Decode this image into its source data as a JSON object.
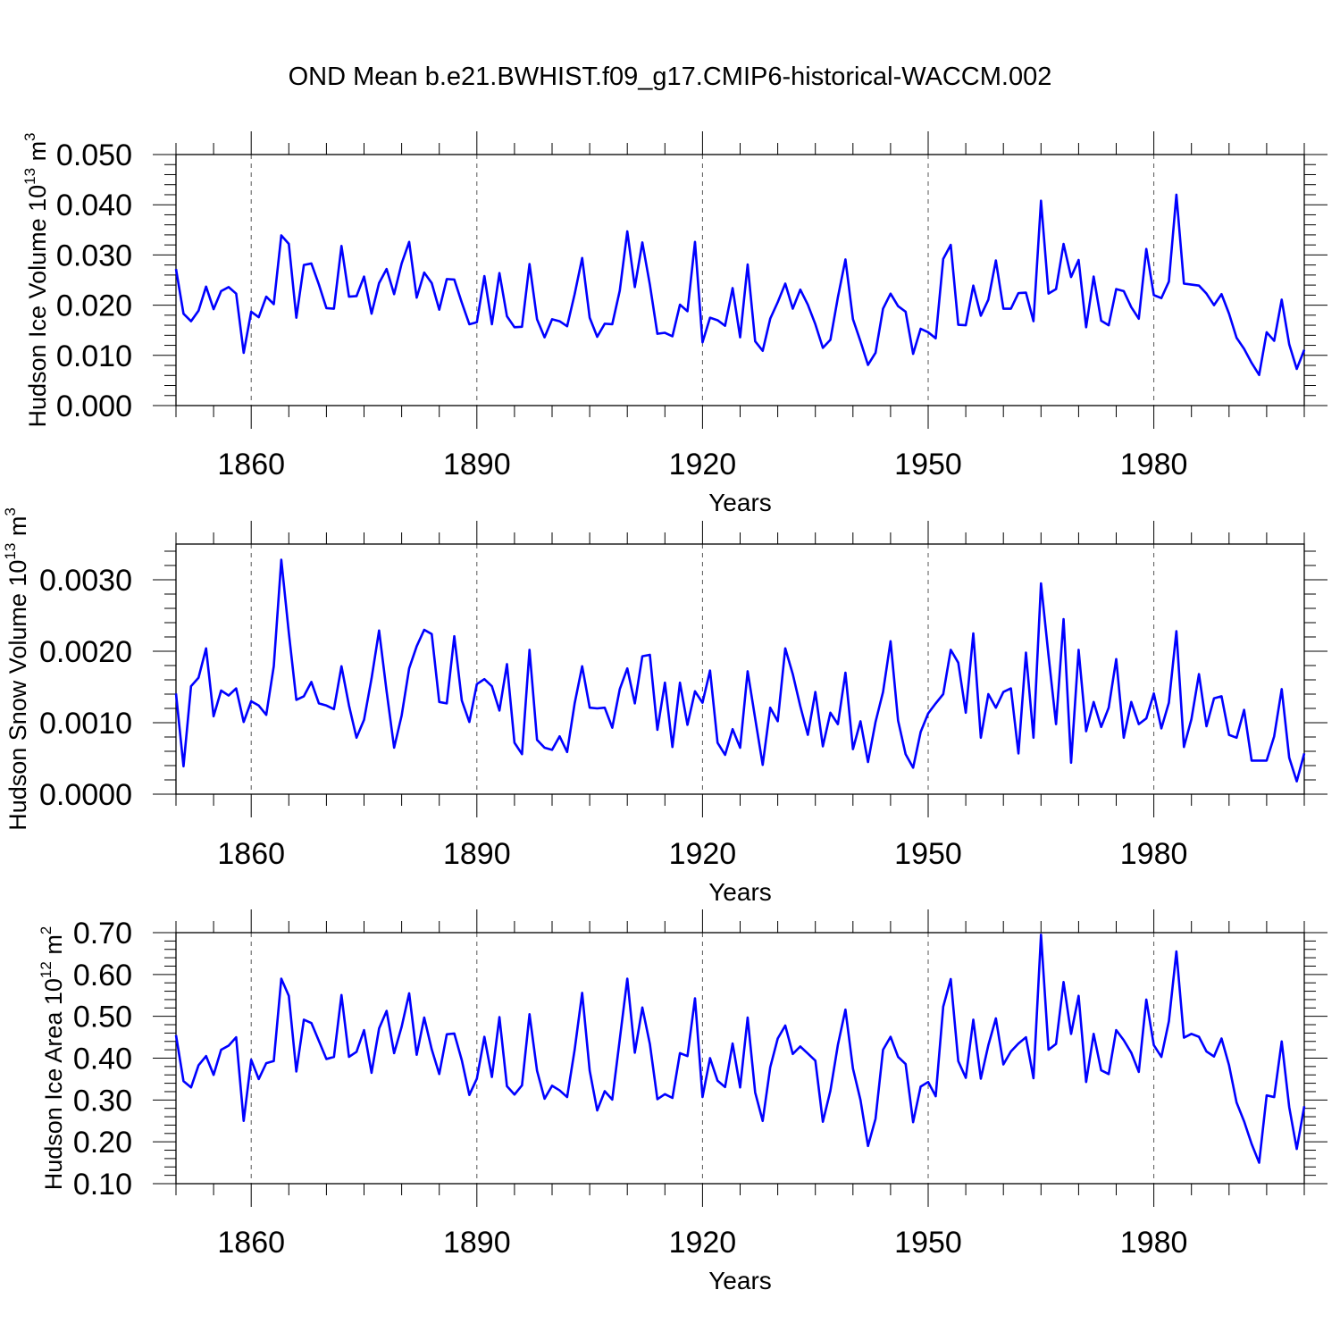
{
  "title": "OND Mean b.e21.BWHIST.f09_g17.CMIP6-historical-WACCM.002",
  "line_color": "#0000ff",
  "chart_data": [
    {
      "type": "line",
      "ylabel": {
        "text": "Hudson Ice Volume 10",
        "sup1": "13",
        "mid": " m",
        "sup2": "3"
      },
      "xlabel": "Years",
      "xlim": [
        1850,
        2000
      ],
      "ylim": [
        0.0,
        0.05
      ],
      "xticks": [
        1860,
        1890,
        1920,
        1950,
        1980
      ],
      "xtick_labels": [
        "1860",
        "1890",
        "1920",
        "1950",
        "1980"
      ],
      "yticks": [
        0.0,
        0.01,
        0.02,
        0.03,
        0.04,
        0.05
      ],
      "ytick_labels": [
        "0.000",
        "0.010",
        "0.020",
        "0.030",
        "0.040",
        "0.050"
      ],
      "x_start": 1850,
      "values": [
        0.0272,
        0.0183,
        0.0168,
        0.0189,
        0.0237,
        0.0192,
        0.0228,
        0.0236,
        0.0223,
        0.0105,
        0.0187,
        0.0176,
        0.0217,
        0.0202,
        0.0339,
        0.0322,
        0.0175,
        0.028,
        0.0283,
        0.0241,
        0.0194,
        0.0193,
        0.0318,
        0.0217,
        0.0218,
        0.0257,
        0.0183,
        0.0244,
        0.0272,
        0.0222,
        0.0283,
        0.0326,
        0.0215,
        0.0265,
        0.0244,
        0.0191,
        0.0252,
        0.0251,
        0.0205,
        0.0162,
        0.0166,
        0.0258,
        0.0162,
        0.0264,
        0.0178,
        0.0156,
        0.0157,
        0.0282,
        0.0172,
        0.0136,
        0.0172,
        0.0168,
        0.0158,
        0.0222,
        0.0294,
        0.0175,
        0.0137,
        0.0163,
        0.0162,
        0.0229,
        0.0347,
        0.0236,
        0.0325,
        0.0241,
        0.0143,
        0.0145,
        0.0138,
        0.0201,
        0.0188,
        0.0326,
        0.0126,
        0.0175,
        0.017,
        0.0159,
        0.0234,
        0.0136,
        0.0281,
        0.0128,
        0.0109,
        0.0173,
        0.0206,
        0.0243,
        0.0193,
        0.0231,
        0.0201,
        0.0162,
        0.0115,
        0.0131,
        0.0216,
        0.0291,
        0.0172,
        0.0128,
        0.0081,
        0.0105,
        0.0193,
        0.0223,
        0.0198,
        0.0187,
        0.0103,
        0.0153,
        0.0146,
        0.0134,
        0.0292,
        0.032,
        0.0161,
        0.016,
        0.0239,
        0.0179,
        0.0211,
        0.0289,
        0.0193,
        0.0193,
        0.0224,
        0.0225,
        0.0168,
        0.0408,
        0.0223,
        0.0232,
        0.0322,
        0.0256,
        0.029,
        0.0156,
        0.0257,
        0.0169,
        0.016,
        0.0232,
        0.0228,
        0.0196,
        0.0173,
        0.0312,
        0.022,
        0.0214,
        0.0247,
        0.042,
        0.0243,
        0.0241,
        0.0239,
        0.0223,
        0.02,
        0.0222,
        0.0183,
        0.0135,
        0.0113,
        0.0085,
        0.0061,
        0.0146,
        0.0129,
        0.0211,
        0.0122,
        0.0073,
        0.0111
      ]
    },
    {
      "type": "line",
      "ylabel": {
        "text": "Hudson Snow Volume 10",
        "sup1": "13",
        "mid": " m",
        "sup2": "3"
      },
      "xlabel": "Years",
      "xlim": [
        1850,
        2000
      ],
      "ylim": [
        0.0,
        0.0035
      ],
      "xticks": [
        1860,
        1890,
        1920,
        1950,
        1980
      ],
      "xtick_labels": [
        "1860",
        "1890",
        "1920",
        "1950",
        "1980"
      ],
      "yticks": [
        0.0,
        0.001,
        0.002,
        0.003
      ],
      "ytick_labels": [
        "0.0000",
        "0.0010",
        "0.0020",
        "0.0030"
      ],
      "x_start": 1850,
      "values": [
        0.00141,
        0.00039,
        0.00151,
        0.00163,
        0.00204,
        0.00109,
        0.00145,
        0.00138,
        0.00148,
        0.00101,
        0.0013,
        0.00124,
        0.00111,
        0.00179,
        0.00328,
        0.00226,
        0.00132,
        0.00137,
        0.00157,
        0.00127,
        0.00124,
        0.00119,
        0.00179,
        0.00124,
        0.00079,
        0.00104,
        0.00162,
        0.00229,
        0.00144,
        0.00065,
        0.0011,
        0.00176,
        0.00207,
        0.0023,
        0.00224,
        0.00129,
        0.00127,
        0.00221,
        0.00131,
        0.00101,
        0.00154,
        0.00161,
        0.00151,
        0.00117,
        0.00182,
        0.00072,
        0.00056,
        0.00202,
        0.00076,
        0.00065,
        0.00062,
        0.00081,
        0.00059,
        0.00127,
        0.00179,
        0.00121,
        0.0012,
        0.00121,
        0.00093,
        0.00147,
        0.00176,
        0.00127,
        0.00193,
        0.00195,
        0.0009,
        0.00156,
        0.00066,
        0.00156,
        0.00097,
        0.00144,
        0.00128,
        0.00173,
        0.00072,
        0.00055,
        0.00091,
        0.00065,
        0.00172,
        0.00106,
        0.00041,
        0.00121,
        0.00102,
        0.00204,
        0.00168,
        0.00123,
        0.00083,
        0.00143,
        0.00067,
        0.00114,
        0.00098,
        0.0017,
        0.00063,
        0.00102,
        0.00045,
        0.00101,
        0.00143,
        0.00214,
        0.00103,
        0.00056,
        0.00037,
        0.00087,
        0.00113,
        0.00127,
        0.0014,
        0.00202,
        0.00184,
        0.00114,
        0.00225,
        0.00079,
        0.0014,
        0.00121,
        0.00143,
        0.00148,
        0.00057,
        0.00198,
        0.00079,
        0.00295,
        0.00194,
        0.00098,
        0.00245,
        0.00044,
        0.00202,
        0.00088,
        0.00129,
        0.00094,
        0.00121,
        0.00189,
        0.00079,
        0.00129,
        0.00098,
        0.00106,
        0.00141,
        0.00092,
        0.00128,
        0.00228,
        0.00066,
        0.00105,
        0.00168,
        0.00095,
        0.00134,
        0.00137,
        0.00083,
        0.00079,
        0.00118,
        0.00047,
        0.00047,
        0.00047,
        0.00081,
        0.00147,
        0.00051,
        0.00018,
        0.00057
      ]
    },
    {
      "type": "line",
      "ylabel": {
        "text": "Hudson Ice Area 10",
        "sup1": "12",
        "mid": " m",
        "sup2": "2"
      },
      "xlabel": "Years",
      "xlim": [
        1850,
        2000
      ],
      "ylim": [
        0.1,
        0.7
      ],
      "xticks": [
        1860,
        1890,
        1920,
        1950,
        1980
      ],
      "xtick_labels": [
        "1860",
        "1890",
        "1920",
        "1950",
        "1980"
      ],
      "yticks": [
        0.1,
        0.2,
        0.3,
        0.4,
        0.5,
        0.6,
        0.7
      ],
      "ytick_labels": [
        "0.10",
        "0.20",
        "0.30",
        "0.40",
        "0.50",
        "0.60",
        "0.70"
      ],
      "x_start": 1850,
      "values": [
        0.455,
        0.345,
        0.33,
        0.383,
        0.405,
        0.36,
        0.42,
        0.43,
        0.45,
        0.25,
        0.396,
        0.35,
        0.388,
        0.393,
        0.59,
        0.549,
        0.368,
        0.492,
        0.484,
        0.441,
        0.398,
        0.403,
        0.551,
        0.403,
        0.415,
        0.467,
        0.365,
        0.471,
        0.513,
        0.412,
        0.475,
        0.555,
        0.408,
        0.497,
        0.421,
        0.362,
        0.457,
        0.459,
        0.395,
        0.312,
        0.351,
        0.451,
        0.355,
        0.498,
        0.333,
        0.313,
        0.335,
        0.505,
        0.37,
        0.303,
        0.334,
        0.323,
        0.307,
        0.42,
        0.556,
        0.37,
        0.275,
        0.321,
        0.301,
        0.445,
        0.59,
        0.413,
        0.521,
        0.434,
        0.302,
        0.314,
        0.305,
        0.412,
        0.405,
        0.543,
        0.307,
        0.4,
        0.346,
        0.331,
        0.435,
        0.33,
        0.497,
        0.318,
        0.25,
        0.378,
        0.447,
        0.478,
        0.41,
        0.428,
        0.411,
        0.394,
        0.248,
        0.322,
        0.432,
        0.516,
        0.375,
        0.3,
        0.19,
        0.255,
        0.42,
        0.451,
        0.403,
        0.386,
        0.247,
        0.332,
        0.343,
        0.309,
        0.523,
        0.589,
        0.393,
        0.353,
        0.492,
        0.351,
        0.431,
        0.495,
        0.385,
        0.416,
        0.435,
        0.45,
        0.352,
        0.695,
        0.42,
        0.434,
        0.582,
        0.458,
        0.549,
        0.343,
        0.458,
        0.371,
        0.362,
        0.467,
        0.443,
        0.413,
        0.367,
        0.54,
        0.431,
        0.403,
        0.488,
        0.655,
        0.449,
        0.458,
        0.451,
        0.416,
        0.404,
        0.447,
        0.383,
        0.294,
        0.249,
        0.195,
        0.15,
        0.311,
        0.307,
        0.44,
        0.283,
        0.183,
        0.285
      ]
    }
  ]
}
